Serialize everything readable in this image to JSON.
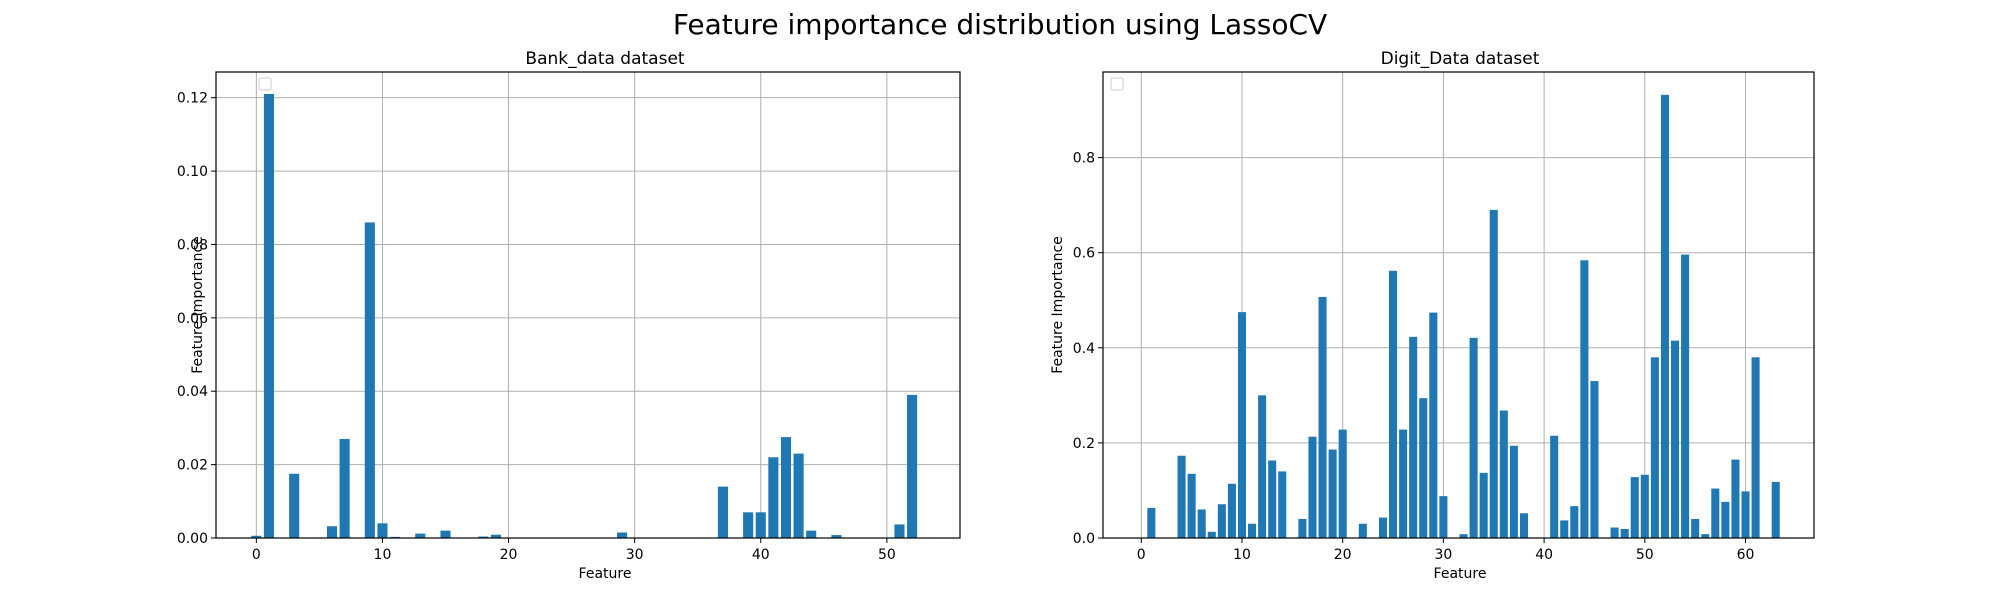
{
  "figure": {
    "suptitle": "Feature importance distribution using LassoCV"
  },
  "chart_data": [
    {
      "type": "bar",
      "title": "Bank_data dataset",
      "xlabel": "Feature",
      "ylabel": "Feature Importance",
      "xlim": [
        -3.2,
        55.8
      ],
      "ylim": [
        0,
        0.127
      ],
      "xticks": [
        0,
        10,
        20,
        30,
        40,
        50
      ],
      "xtick_labels": [
        "0",
        "10",
        "20",
        "30",
        "40",
        "50"
      ],
      "yticks": [
        0,
        0.02,
        0.04,
        0.06,
        0.08,
        0.1,
        0.12
      ],
      "ytick_labels": [
        "0.00",
        "0.02",
        "0.04",
        "0.06",
        "0.08",
        "0.10",
        "0.12"
      ],
      "grid": true,
      "legend": "top-left (empty)",
      "color": "#1f77b4",
      "x": [
        0,
        1,
        3,
        6,
        7,
        9,
        10,
        11,
        13,
        15,
        18,
        19,
        29,
        37,
        39,
        40,
        41,
        42,
        43,
        44,
        46,
        51,
        52
      ],
      "values": [
        0.0006,
        0.121,
        0.0175,
        0.0032,
        0.027,
        0.086,
        0.004,
        0.0003,
        0.0012,
        0.002,
        0.0004,
        0.0009,
        0.0015,
        0.014,
        0.007,
        0.007,
        0.022,
        0.0275,
        0.023,
        0.002,
        0.0008,
        0.0037,
        0.039
      ]
    },
    {
      "type": "bar",
      "title": "Digit_Data dataset",
      "xlabel": "Feature",
      "ylabel": "Feature Importance",
      "xlim": [
        -3.8,
        66.8
      ],
      "ylim": [
        0,
        0.98
      ],
      "xticks": [
        0,
        10,
        20,
        30,
        40,
        50,
        60
      ],
      "xtick_labels": [
        "0",
        "10",
        "20",
        "30",
        "40",
        "50",
        "60"
      ],
      "yticks": [
        0,
        0.2,
        0.4,
        0.6,
        0.8
      ],
      "ytick_labels": [
        "0.0",
        "0.2",
        "0.4",
        "0.6",
        "0.8"
      ],
      "grid": true,
      "legend": "top-left (empty)",
      "color": "#1f77b4",
      "x": [
        1,
        4,
        5,
        6,
        7,
        8,
        9,
        10,
        11,
        12,
        13,
        14,
        16,
        17,
        18,
        19,
        20,
        22,
        24,
        25,
        26,
        27,
        28,
        29,
        30,
        32,
        33,
        34,
        35,
        36,
        37,
        38,
        41,
        42,
        43,
        44,
        45,
        47,
        48,
        49,
        50,
        51,
        52,
        53,
        54,
        55,
        56,
        57,
        58,
        59,
        60,
        61,
        63
      ],
      "values": [
        0.063,
        0.173,
        0.135,
        0.06,
        0.013,
        0.071,
        0.114,
        0.475,
        0.03,
        0.3,
        0.163,
        0.14,
        0.04,
        0.213,
        0.507,
        0.186,
        0.228,
        0.03,
        0.043,
        0.562,
        0.228,
        0.423,
        0.294,
        0.474,
        0.088,
        0.008,
        0.421,
        0.137,
        0.69,
        0.268,
        0.194,
        0.052,
        0.215,
        0.037,
        0.067,
        0.584,
        0.33,
        0.022,
        0.019,
        0.128,
        0.133,
        0.38,
        0.932,
        0.415,
        0.596,
        0.04,
        0.008,
        0.104,
        0.076,
        0.165,
        0.098,
        0.38,
        0.118
      ]
    }
  ]
}
